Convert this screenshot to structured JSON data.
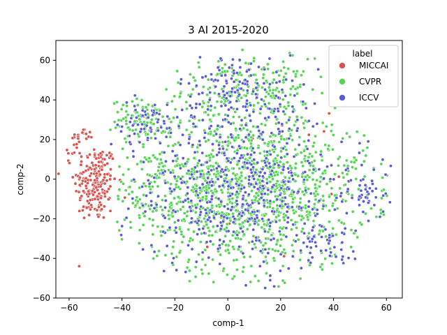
{
  "chart_data": {
    "type": "scatter",
    "title": "3 AI 2015-2020",
    "xlabel": "comp-1",
    "ylabel": "comp-2",
    "xlim": [
      -65,
      66
    ],
    "ylim": [
      -60,
      70
    ],
    "xticks": [
      -60,
      -40,
      -20,
      0,
      20,
      40,
      60
    ],
    "yticks": [
      -60,
      -40,
      -20,
      0,
      20,
      40,
      60
    ],
    "grid": false,
    "legend": {
      "title": "label",
      "placement": "top-right"
    },
    "series": [
      {
        "name": "MICCAI",
        "color": "#d9534f",
        "clusters": [
          {
            "cx": -50,
            "cy": -2,
            "sx": 4,
            "sy": 10,
            "n": 200
          },
          {
            "cx": -55,
            "cy": 22,
            "sx": 2,
            "sy": 2,
            "n": 18
          },
          {
            "cx": -58,
            "cy": 14,
            "sx": 2,
            "sy": 2,
            "n": 8
          }
        ],
        "scattered_n": 14
      },
      {
        "name": "CVPR",
        "color": "#55d655",
        "clusters": [
          {
            "cx": 7,
            "cy": 45,
            "sx": 12,
            "sy": 8,
            "n": 220
          },
          {
            "cx": -32,
            "cy": 30,
            "sx": 6,
            "sy": 5,
            "n": 90
          },
          {
            "cx": 5,
            "cy": -5,
            "sx": 24,
            "sy": 20,
            "n": 1300
          }
        ],
        "scattered_n": 0
      },
      {
        "name": "ICCV",
        "color": "#5b5bd6",
        "clusters": [
          {
            "cx": 5,
            "cy": 45,
            "sx": 12,
            "sy": 9,
            "n": 140
          },
          {
            "cx": -32,
            "cy": 28,
            "sx": 7,
            "sy": 6,
            "n": 55
          },
          {
            "cx": 38,
            "cy": -32,
            "sx": 5,
            "sy": 4,
            "n": 40
          },
          {
            "cx": 52,
            "cy": -7,
            "sx": 4,
            "sy": 4,
            "n": 30
          },
          {
            "cx": 5,
            "cy": -5,
            "sx": 24,
            "sy": 20,
            "n": 520
          }
        ],
        "scattered_n": 0
      }
    ]
  }
}
